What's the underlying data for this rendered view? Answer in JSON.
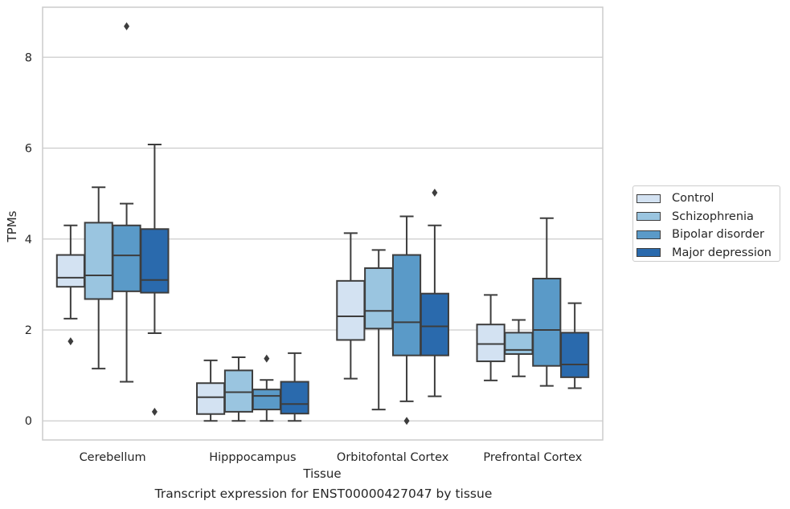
{
  "caption": "Transcript expression for ENST00000427047 by tissue",
  "chart_data": {
    "type": "box",
    "xlabel": "Tissue",
    "ylabel": "TPMs",
    "ylim": [
      -0.42,
      9.1
    ],
    "yticks": [
      0,
      2,
      4,
      6,
      8
    ],
    "ytick_labels": [
      "0",
      "2",
      "4",
      "6",
      "8"
    ],
    "grid": "horizontal",
    "legend_position": "right",
    "categories": [
      "Cerebellum",
      "Hipppocampus",
      "Orbitofontal Cortex",
      "Prefrontal Cortex"
    ],
    "series": [
      {
        "name": "Control",
        "color": "#d3e2f2",
        "boxes": [
          {
            "q1": 2.95,
            "median": 3.15,
            "q3": 3.65,
            "whisker_low": 2.25,
            "whisker_high": 4.3,
            "outliers": [
              1.75
            ]
          },
          {
            "q1": 0.15,
            "median": 0.52,
            "q3": 0.83,
            "whisker_low": 0.0,
            "whisker_high": 1.33,
            "outliers": []
          },
          {
            "q1": 1.78,
            "median": 2.3,
            "q3": 3.08,
            "whisker_low": 0.93,
            "whisker_high": 4.13,
            "outliers": []
          },
          {
            "q1": 1.31,
            "median": 1.69,
            "q3": 2.12,
            "whisker_low": 0.89,
            "whisker_high": 2.77,
            "outliers": []
          }
        ]
      },
      {
        "name": "Schizophrenia",
        "color": "#9ac5e0",
        "boxes": [
          {
            "q1": 2.68,
            "median": 3.2,
            "q3": 4.36,
            "whisker_low": 1.15,
            "whisker_high": 5.14,
            "outliers": []
          },
          {
            "q1": 0.2,
            "median": 0.63,
            "q3": 1.11,
            "whisker_low": 0.0,
            "whisker_high": 1.4,
            "outliers": []
          },
          {
            "q1": 2.03,
            "median": 2.42,
            "q3": 3.36,
            "whisker_low": 0.25,
            "whisker_high": 3.76,
            "outliers": []
          },
          {
            "q1": 1.47,
            "median": 1.56,
            "q3": 1.94,
            "whisker_low": 0.98,
            "whisker_high": 2.22,
            "outliers": []
          }
        ]
      },
      {
        "name": "Bipolar disorder",
        "color": "#5a9ac8",
        "boxes": [
          {
            "q1": 2.85,
            "median": 3.64,
            "q3": 4.3,
            "whisker_low": 0.86,
            "whisker_high": 4.78,
            "outliers": [
              8.68
            ]
          },
          {
            "q1": 0.25,
            "median": 0.55,
            "q3": 0.69,
            "whisker_low": 0.0,
            "whisker_high": 0.9,
            "outliers": [
              1.37
            ]
          },
          {
            "q1": 1.44,
            "median": 2.17,
            "q3": 3.65,
            "whisker_low": 0.43,
            "whisker_high": 4.5,
            "outliers": [
              0.0
            ]
          },
          {
            "q1": 1.21,
            "median": 2.0,
            "q3": 3.13,
            "whisker_low": 0.77,
            "whisker_high": 4.46,
            "outliers": []
          }
        ]
      },
      {
        "name": "Major depression",
        "color": "#2a6aad",
        "boxes": [
          {
            "q1": 2.82,
            "median": 3.1,
            "q3": 4.22,
            "whisker_low": 1.93,
            "whisker_high": 6.08,
            "outliers": [
              0.2
            ]
          },
          {
            "q1": 0.16,
            "median": 0.37,
            "q3": 0.86,
            "whisker_low": 0.0,
            "whisker_high": 1.49,
            "outliers": []
          },
          {
            "q1": 1.44,
            "median": 2.08,
            "q3": 2.8,
            "whisker_low": 0.54,
            "whisker_high": 4.3,
            "outliers": [
              5.02
            ]
          },
          {
            "q1": 0.96,
            "median": 1.24,
            "q3": 1.94,
            "whisker_low": 0.72,
            "whisker_high": 2.59,
            "outliers": []
          }
        ]
      }
    ]
  }
}
